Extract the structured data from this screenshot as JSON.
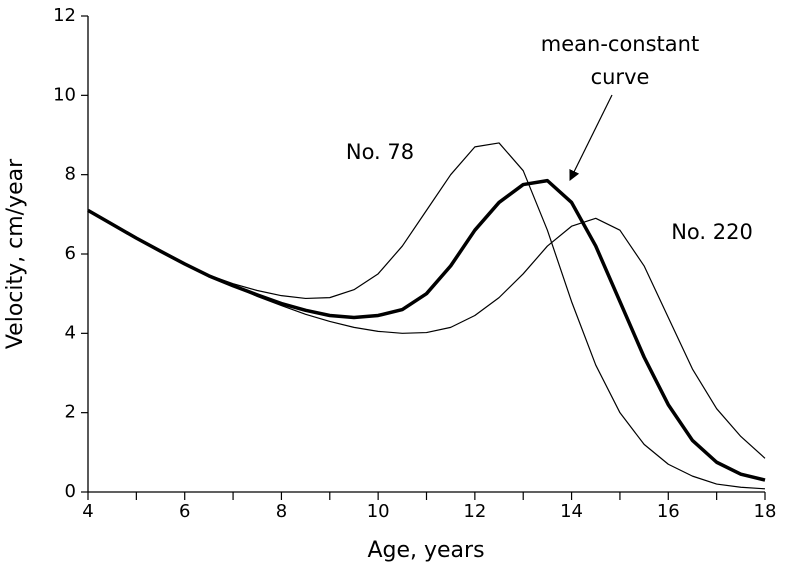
{
  "chart_data": {
    "type": "line",
    "xlabel": "Age, years",
    "ylabel": "Velocity, cm/year",
    "x": [
      4,
      4.5,
      5,
      5.5,
      6,
      6.5,
      7,
      7.5,
      8,
      8.5,
      9,
      9.5,
      10,
      10.5,
      11,
      11.5,
      12,
      12.5,
      13,
      13.5,
      14,
      14.5,
      15,
      15.5,
      16,
      16.5,
      17,
      17.5,
      18
    ],
    "series": [
      {
        "label": "No. 78",
        "color": "#000000",
        "width": 1.2,
        "values": [
          7.1,
          6.75,
          6.4,
          6.07,
          5.75,
          5.47,
          5.25,
          5.08,
          4.95,
          4.88,
          4.9,
          5.1,
          5.5,
          6.2,
          7.1,
          8.0,
          8.7,
          8.8,
          8.1,
          6.6,
          4.8,
          3.2,
          2.0,
          1.2,
          0.7,
          0.4,
          0.2,
          0.12,
          0.08
        ]
      },
      {
        "label": "No. 220",
        "color": "#000000",
        "width": 1.2,
        "values": [
          7.1,
          6.75,
          6.4,
          6.07,
          5.75,
          5.45,
          5.2,
          4.93,
          4.7,
          4.48,
          4.3,
          4.15,
          4.05,
          4.0,
          4.02,
          4.15,
          4.45,
          4.9,
          5.5,
          6.2,
          6.7,
          6.9,
          6.6,
          5.7,
          4.4,
          3.1,
          2.1,
          1.4,
          0.85
        ]
      },
      {
        "label_lines": [
          "mean-constant",
          "curve"
        ],
        "color": "#000000",
        "width": 3.5,
        "values": [
          7.1,
          6.75,
          6.4,
          6.07,
          5.75,
          5.45,
          5.2,
          4.97,
          4.75,
          4.58,
          4.45,
          4.4,
          4.45,
          4.6,
          5.0,
          5.7,
          6.6,
          7.3,
          7.75,
          7.85,
          7.3,
          6.2,
          4.8,
          3.4,
          2.2,
          1.3,
          0.75,
          0.45,
          0.3
        ]
      }
    ],
    "xlim": [
      4,
      18
    ],
    "xticks": [
      4,
      6,
      8,
      10,
      12,
      14,
      16,
      18
    ],
    "xminorticks": [
      5,
      7,
      9,
      11,
      13,
      15,
      17
    ],
    "ylim": [
      0,
      12
    ],
    "yticks": [
      0,
      2,
      4,
      6,
      8,
      10,
      12
    ],
    "grid": false
  }
}
